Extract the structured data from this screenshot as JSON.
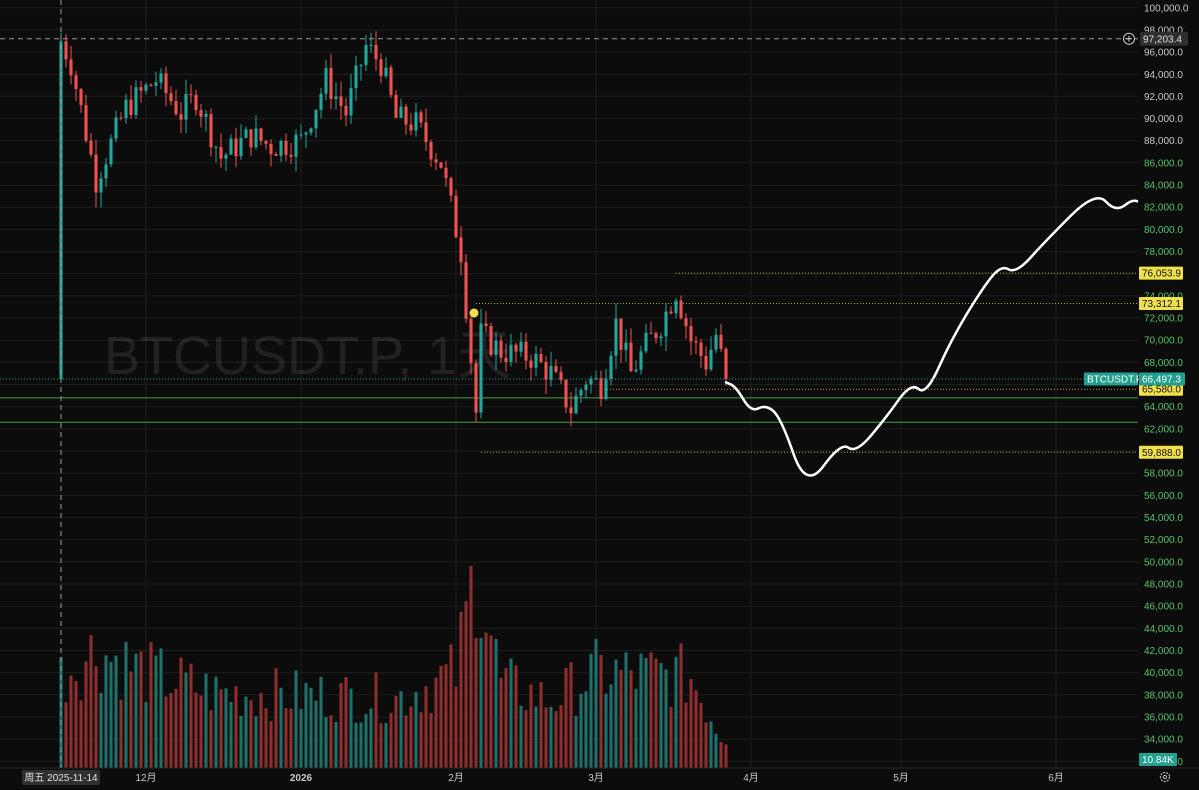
{
  "chart_data": {
    "type": "candlestick",
    "symbol_watermark": "BTCUSDT.P, 1天",
    "symbol": "BTCUSDT.P",
    "interval": "1天",
    "y_axis_labels": [
      "100,000.0",
      "98,000.0",
      "96,000.0",
      "94,000.0",
      "92,000.0",
      "90,000.0",
      "88,000.0",
      "86,000.0",
      "84,000.0",
      "82,000.0",
      "80,000.0",
      "78,000.0",
      "76,000.0",
      "74,000.0",
      "72,000.0",
      "70,000.0",
      "68,000.0",
      "66,000.0",
      "64,000.0",
      "62,000.0",
      "60,000.0",
      "58,000.0",
      "56,000.0",
      "54,000.0",
      "52,000.0",
      "50,000.0",
      "48,000.0",
      "46,000.0",
      "44,000.0",
      "42,000.0",
      "40,000.0",
      "38,000.0",
      "36,000.0",
      "34,000.0",
      "32,000.0"
    ],
    "ylim": [
      31400,
      100700
    ],
    "x_axis_labels": [
      {
        "label": "12月",
        "date": "2025-12-01"
      },
      {
        "label": "2026",
        "date": "2026-01-01"
      },
      {
        "label": "2月",
        "date": "2026-02-01"
      },
      {
        "label": "3月",
        "date": "2026-03-01"
      },
      {
        "label": "4月",
        "date": "2026-04-01"
      },
      {
        "label": "5月",
        "date": "2026-05-01"
      },
      {
        "label": "6月",
        "date": "2026-06-01"
      }
    ],
    "crosshair": {
      "price_label": "97,203.4",
      "price": 97203.4,
      "date_label": "周五 2025-11-14",
      "date": "2025-11-14"
    },
    "price_tags": [
      {
        "label": "76,053.9",
        "price": 76053.9,
        "color": "#f0e14a",
        "style": "dotted",
        "from_date": "2026-03-17"
      },
      {
        "label": "73,312.1",
        "price": 73312.1,
        "color": "#f0e14a",
        "style": "dotted",
        "from_date": "2026-02-05"
      },
      {
        "label": "65,580.0",
        "price": 65580.0,
        "color": "#f0e14a",
        "style": "dotted",
        "from_date": "2026-03-02"
      },
      {
        "label": "59,888.0",
        "price": 59888.0,
        "color": "#f0e14a",
        "style": "dotted",
        "from_date": "2026-02-06"
      }
    ],
    "horizontal_lines": [
      {
        "price": 64800,
        "color": "#43a047"
      },
      {
        "price": 62600,
        "color": "#43a047"
      }
    ],
    "last_price": {
      "label": "66,497.3",
      "price": 66497.3,
      "symbol_tag": "BTCUSDT.P",
      "color": "#22a08f"
    },
    "volume": {
      "last_label": "10.84K",
      "color": "#22a08f"
    },
    "anchors": [
      {
        "date": "2025-11-14",
        "price": 97000
      },
      {
        "date": "2025-11-16",
        "price": 95000
      },
      {
        "date": "2025-11-21",
        "price": 84500
      },
      {
        "date": "2025-11-27",
        "price": 91000
      },
      {
        "date": "2025-12-03",
        "price": 93500
      },
      {
        "date": "2025-12-08",
        "price": 90500
      },
      {
        "date": "2025-12-11",
        "price": 92000
      },
      {
        "date": "2025-12-16",
        "price": 86500
      },
      {
        "date": "2025-12-22",
        "price": 88500
      },
      {
        "date": "2025-12-26",
        "price": 87500
      },
      {
        "date": "2026-01-01",
        "price": 88000
      },
      {
        "date": "2026-01-06",
        "price": 93500
      },
      {
        "date": "2026-01-10",
        "price": 90500
      },
      {
        "date": "2026-01-14",
        "price": 96500
      },
      {
        "date": "2026-01-17",
        "price": 95000
      },
      {
        "date": "2026-01-20",
        "price": 90000
      },
      {
        "date": "2026-01-24",
        "price": 89500
      },
      {
        "date": "2026-01-29",
        "price": 86000
      },
      {
        "date": "2026-02-02",
        "price": 78000
      },
      {
        "date": "2026-02-05",
        "price": 63500
      },
      {
        "date": "2026-02-06",
        "price": 70500
      },
      {
        "date": "2026-02-10",
        "price": 69000
      },
      {
        "date": "2026-02-16",
        "price": 68500
      },
      {
        "date": "2026-02-20",
        "price": 67000
      },
      {
        "date": "2026-02-24",
        "price": 63800
      },
      {
        "date": "2026-02-27",
        "price": 66500
      },
      {
        "date": "2026-03-02",
        "price": 66000
      },
      {
        "date": "2026-03-05",
        "price": 71500
      },
      {
        "date": "2026-03-08",
        "price": 67000
      },
      {
        "date": "2026-03-11",
        "price": 69500
      },
      {
        "date": "2026-03-14",
        "price": 71500
      },
      {
        "date": "2026-03-17",
        "price": 74500
      },
      {
        "date": "2026-03-20",
        "price": 70000
      },
      {
        "date": "2026-03-23",
        "price": 68000
      },
      {
        "date": "2026-03-25",
        "price": 70500
      },
      {
        "date": "2026-03-27",
        "price": 66500
      }
    ],
    "volume_anchors": [
      {
        "date": "2025-11-14",
        "volume": 46000
      },
      {
        "date": "2025-11-21",
        "volume": 58000
      },
      {
        "date": "2025-12-01",
        "volume": 47000
      },
      {
        "date": "2025-12-15",
        "volume": 37000
      },
      {
        "date": "2026-01-05",
        "volume": 36000
      },
      {
        "date": "2026-01-20",
        "volume": 34000
      },
      {
        "date": "2026-02-01",
        "volume": 47000
      },
      {
        "date": "2026-02-05",
        "volume": 100000
      },
      {
        "date": "2026-02-10",
        "volume": 42000
      },
      {
        "date": "2026-02-20",
        "volume": 33000
      },
      {
        "date": "2026-03-01",
        "volume": 47000
      },
      {
        "date": "2026-03-10",
        "volume": 46000
      },
      {
        "date": "2026-03-20",
        "volume": 45000
      },
      {
        "date": "2026-03-27",
        "volume": 11000
      }
    ],
    "projection_path": [
      {
        "date": "2026-03-27",
        "price": 66200
      },
      {
        "date": "2026-03-29",
        "price": 65800
      },
      {
        "date": "2026-04-01",
        "price": 63500
      },
      {
        "date": "2026-04-04",
        "price": 64200
      },
      {
        "date": "2026-04-07",
        "price": 63000
      },
      {
        "date": "2026-04-12",
        "price": 56500
      },
      {
        "date": "2026-04-19",
        "price": 60800
      },
      {
        "date": "2026-04-22",
        "price": 59800
      },
      {
        "date": "2026-04-28",
        "price": 63000
      },
      {
        "date": "2026-05-03",
        "price": 66200
      },
      {
        "date": "2026-05-06",
        "price": 65000
      },
      {
        "date": "2026-05-11",
        "price": 70000
      },
      {
        "date": "2026-05-17",
        "price": 74500
      },
      {
        "date": "2026-05-21",
        "price": 76800
      },
      {
        "date": "2026-05-24",
        "price": 76000
      },
      {
        "date": "2026-05-30",
        "price": 79000
      },
      {
        "date": "2026-06-09",
        "price": 83500
      },
      {
        "date": "2026-06-13",
        "price": 81500
      },
      {
        "date": "2026-06-17",
        "price": 83000
      },
      {
        "date": "2026-06-20",
        "price": 81200
      },
      {
        "date": "2026-06-25",
        "price": 82800
      },
      {
        "date": "2026-06-28",
        "price": 81000
      },
      {
        "date": "2026-06-30",
        "price": 82500
      },
      {
        "date": "2026-07-02",
        "price": 80500
      }
    ],
    "projection_drop": [
      {
        "date": "2026-07-04",
        "price": 79000
      },
      {
        "date": "2026-07-07",
        "price": 70000
      },
      {
        "date": "2026-07-11",
        "price": 53000
      }
    ],
    "colors": {
      "up": "#26a69a",
      "down": "#ef5350",
      "background": "#0c0c0c",
      "grid": "#1e1e1e",
      "projection": "#ffffff"
    },
    "grid": true,
    "legend": "none"
  },
  "icons": {
    "plus": "plus-circle-icon",
    "settings": "gear-icon"
  }
}
